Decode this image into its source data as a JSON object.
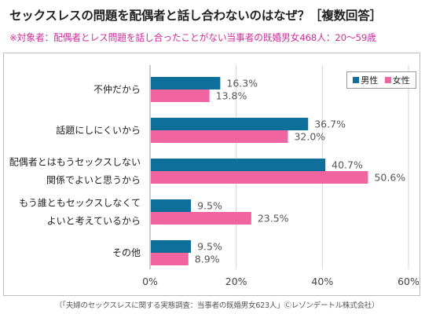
{
  "title": "セックスレスの問題を配偶者と話し合わないのはなぜ？［複数回答］",
  "subtitle": "※対象者：配偶者とレス問題を話し合ったことがない当事者の既婚男女468人：20～59歳",
  "source": "（「夫婦のセックスレスに関する実態調査：当事者の既婚男女623人」Ⓒレゾンデートル株式会社）",
  "colors": {
    "male": "#0f6f9b",
    "female": "#f0649f",
    "subtitle": "#cc2e9c"
  },
  "chart_data": {
    "type": "bar",
    "orientation": "horizontal",
    "categories": [
      [
        "不仲だから"
      ],
      [
        "話題にしにくいから"
      ],
      [
        "配偶者とはもうセックスしない",
        "関係でよいと思うから"
      ],
      [
        "もう誰ともセックスしなくて",
        "よいと考えているから"
      ],
      [
        "その他"
      ]
    ],
    "series": [
      {
        "name": "男性",
        "values": [
          16.3,
          36.7,
          40.7,
          9.5,
          9.5
        ],
        "labels": [
          "16.3%",
          "36.7%",
          "40.7%",
          "9.5%",
          "9.5%"
        ]
      },
      {
        "name": "女性",
        "values": [
          13.8,
          32.0,
          50.6,
          23.5,
          8.9
        ],
        "labels": [
          "13.8%",
          "32.0%",
          "50.6%",
          "23.5%",
          "8.9%"
        ]
      }
    ],
    "xlim": [
      0,
      60
    ],
    "xticks": [
      0,
      20,
      40,
      60
    ],
    "xtick_labels": [
      "0%",
      "20%",
      "40%",
      "60%"
    ],
    "grid": "vertical",
    "legend": "top-right"
  }
}
